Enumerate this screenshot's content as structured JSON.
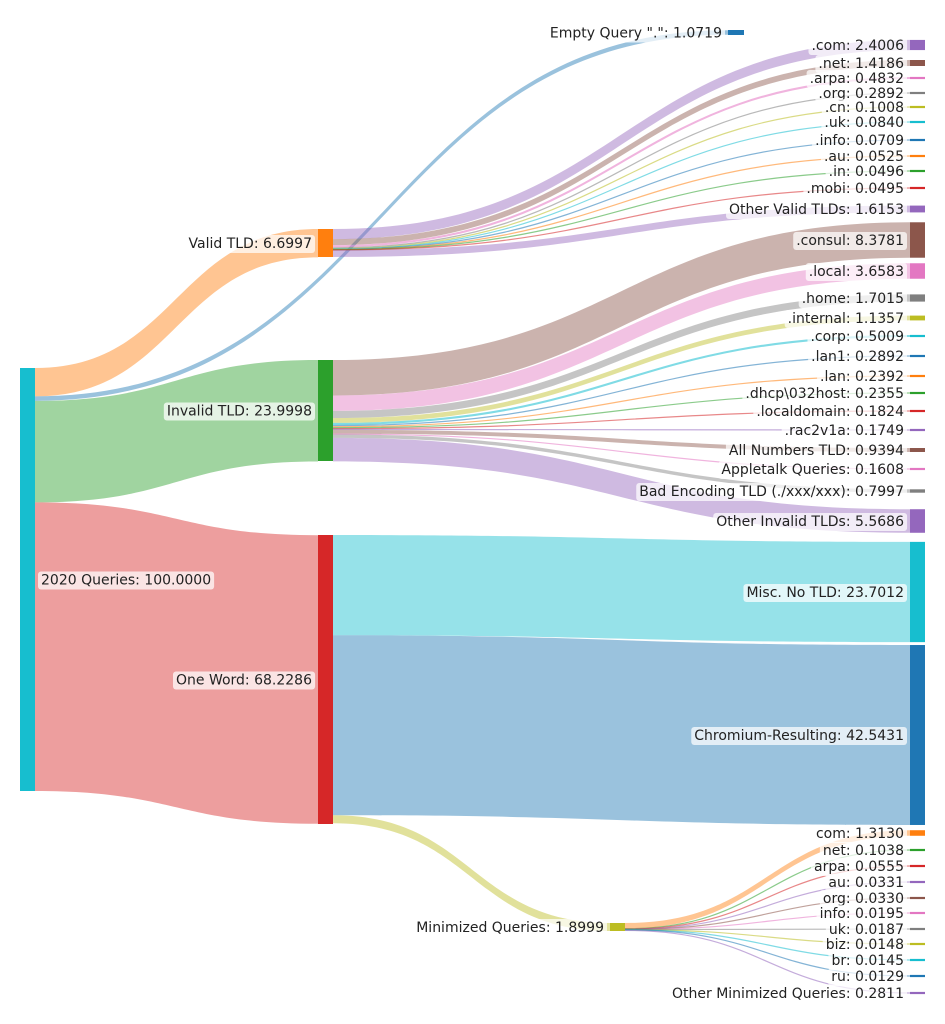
{
  "chart_data": {
    "type": "sankey",
    "title": "",
    "nodes": [
      {
        "id": "root",
        "label": "2020 Queries: 100.0000",
        "value": 100.0,
        "color": "#17becf"
      },
      {
        "id": "valid",
        "label": "Valid TLD: 6.6997",
        "value": 6.6997,
        "color": "#ff7f0e"
      },
      {
        "id": "invalid",
        "label": "Invalid TLD: 23.9998",
        "value": 23.9998,
        "color": "#2ca02c"
      },
      {
        "id": "oneword",
        "label": "One Word: 68.2286",
        "value": 68.2286,
        "color": "#d62728"
      },
      {
        "id": "empty",
        "label": "Empty Query \".\": 1.0719",
        "value": 1.0719,
        "color": "#1f77b4"
      },
      {
        "id": "v_com",
        "label": ".com: 2.4006",
        "value": 2.4006,
        "color": "#9467bd"
      },
      {
        "id": "v_net",
        "label": ".net: 1.4186",
        "value": 1.4186,
        "color": "#8c564b"
      },
      {
        "id": "v_arpa",
        "label": ".arpa: 0.4832",
        "value": 0.4832,
        "color": "#e377c2"
      },
      {
        "id": "v_org",
        "label": ".org: 0.2892",
        "value": 0.2892,
        "color": "#7f7f7f"
      },
      {
        "id": "v_cn",
        "label": ".cn: 0.1008",
        "value": 0.1008,
        "color": "#bcbd22"
      },
      {
        "id": "v_uk",
        "label": ".uk: 0.0840",
        "value": 0.084,
        "color": "#17becf"
      },
      {
        "id": "v_info",
        "label": ".info: 0.0709",
        "value": 0.0709,
        "color": "#1f77b4"
      },
      {
        "id": "v_au",
        "label": ".au: 0.0525",
        "value": 0.0525,
        "color": "#ff7f0e"
      },
      {
        "id": "v_in",
        "label": ".in: 0.0496",
        "value": 0.0496,
        "color": "#2ca02c"
      },
      {
        "id": "v_mobi",
        "label": ".mobi: 0.0495",
        "value": 0.0495,
        "color": "#d62728"
      },
      {
        "id": "v_other",
        "label": "Other Valid TLDs: 1.6153",
        "value": 1.6153,
        "color": "#9467bd"
      },
      {
        "id": "i_consul",
        "label": ".consul: 8.3781",
        "value": 8.3781,
        "color": "#8c564b"
      },
      {
        "id": "i_local",
        "label": ".local: 3.6583",
        "value": 3.6583,
        "color": "#e377c2"
      },
      {
        "id": "i_home",
        "label": ".home: 1.7015",
        "value": 1.7015,
        "color": "#7f7f7f"
      },
      {
        "id": "i_internal",
        "label": ".internal: 1.1357",
        "value": 1.1357,
        "color": "#bcbd22"
      },
      {
        "id": "i_corp",
        "label": ".corp: 0.5009",
        "value": 0.5009,
        "color": "#17becf"
      },
      {
        "id": "i_lan1",
        "label": ".lan1: 0.2892",
        "value": 0.2892,
        "color": "#1f77b4"
      },
      {
        "id": "i_lan",
        "label": ".lan: 0.2392",
        "value": 0.2392,
        "color": "#ff7f0e"
      },
      {
        "id": "i_dhcp",
        "label": ".dhcp\\032host: 0.2355",
        "value": 0.2355,
        "color": "#2ca02c"
      },
      {
        "id": "i_localdomain",
        "label": ".localdomain: 0.1824",
        "value": 0.1824,
        "color": "#d62728"
      },
      {
        "id": "i_rac",
        "label": ".rac2v1a: 0.1749",
        "value": 0.1749,
        "color": "#9467bd"
      },
      {
        "id": "i_numbers",
        "label": "All Numbers TLD: 0.9394",
        "value": 0.9394,
        "color": "#8c564b"
      },
      {
        "id": "i_appletalk",
        "label": "Appletalk Queries: 0.1608",
        "value": 0.1608,
        "color": "#e377c2"
      },
      {
        "id": "i_badenc",
        "label": "Bad Encoding TLD (./xxx/xxx): 0.7997",
        "value": 0.7997,
        "color": "#7f7f7f"
      },
      {
        "id": "i_other",
        "label": "Other Invalid TLDs: 5.5686",
        "value": 5.5686,
        "color": "#9467bd"
      },
      {
        "id": "o_misc",
        "label": "Misc. No TLD: 23.7012",
        "value": 23.7012,
        "color": "#17becf"
      },
      {
        "id": "o_chromium",
        "label": "Chromium-Resulting: 42.5431",
        "value": 42.5431,
        "color": "#1f77b4"
      },
      {
        "id": "o_min",
        "label": "Minimized Queries: 1.8999",
        "value": 1.8999,
        "color": "#bcbd22"
      },
      {
        "id": "m_com",
        "label": "com: 1.3130",
        "value": 1.313,
        "color": "#ff7f0e"
      },
      {
        "id": "m_net",
        "label": "net: 0.1038",
        "value": 0.1038,
        "color": "#2ca02c"
      },
      {
        "id": "m_arpa",
        "label": "arpa: 0.0555",
        "value": 0.0555,
        "color": "#d62728"
      },
      {
        "id": "m_au",
        "label": "au: 0.0331",
        "value": 0.0331,
        "color": "#9467bd"
      },
      {
        "id": "m_org",
        "label": "org: 0.0330",
        "value": 0.033,
        "color": "#8c564b"
      },
      {
        "id": "m_info",
        "label": "info: 0.0195",
        "value": 0.0195,
        "color": "#e377c2"
      },
      {
        "id": "m_uk",
        "label": "uk: 0.0187",
        "value": 0.0187,
        "color": "#7f7f7f"
      },
      {
        "id": "m_biz",
        "label": "biz: 0.0148",
        "value": 0.0148,
        "color": "#bcbd22"
      },
      {
        "id": "m_br",
        "label": "br: 0.0145",
        "value": 0.0145,
        "color": "#17becf"
      },
      {
        "id": "m_ru",
        "label": "ru: 0.0129",
        "value": 0.0129,
        "color": "#1f77b4"
      },
      {
        "id": "m_other",
        "label": "Other Minimized Queries: 0.2811",
        "value": 0.2811,
        "color": "#9467bd"
      }
    ],
    "links": [
      {
        "source": "root",
        "target": "valid",
        "value": 6.6997
      },
      {
        "source": "root",
        "target": "empty",
        "value": 1.0719
      },
      {
        "source": "root",
        "target": "invalid",
        "value": 23.9998
      },
      {
        "source": "root",
        "target": "oneword",
        "value": 68.2286
      },
      {
        "source": "valid",
        "target": "v_com",
        "value": 2.4006
      },
      {
        "source": "valid",
        "target": "v_net",
        "value": 1.4186
      },
      {
        "source": "valid",
        "target": "v_arpa",
        "value": 0.4832
      },
      {
        "source": "valid",
        "target": "v_org",
        "value": 0.2892
      },
      {
        "source": "valid",
        "target": "v_cn",
        "value": 0.1008
      },
      {
        "source": "valid",
        "target": "v_uk",
        "value": 0.084
      },
      {
        "source": "valid",
        "target": "v_info",
        "value": 0.0709
      },
      {
        "source": "valid",
        "target": "v_au",
        "value": 0.0525
      },
      {
        "source": "valid",
        "target": "v_in",
        "value": 0.0496
      },
      {
        "source": "valid",
        "target": "v_mobi",
        "value": 0.0495
      },
      {
        "source": "valid",
        "target": "v_other",
        "value": 1.6153
      },
      {
        "source": "invalid",
        "target": "i_consul",
        "value": 8.3781
      },
      {
        "source": "invalid",
        "target": "i_local",
        "value": 3.6583
      },
      {
        "source": "invalid",
        "target": "i_home",
        "value": 1.7015
      },
      {
        "source": "invalid",
        "target": "i_internal",
        "value": 1.1357
      },
      {
        "source": "invalid",
        "target": "i_corp",
        "value": 0.5009
      },
      {
        "source": "invalid",
        "target": "i_lan1",
        "value": 0.2892
      },
      {
        "source": "invalid",
        "target": "i_lan",
        "value": 0.2392
      },
      {
        "source": "invalid",
        "target": "i_dhcp",
        "value": 0.2355
      },
      {
        "source": "invalid",
        "target": "i_localdomain",
        "value": 0.1824
      },
      {
        "source": "invalid",
        "target": "i_rac",
        "value": 0.1749
      },
      {
        "source": "invalid",
        "target": "i_numbers",
        "value": 0.9394
      },
      {
        "source": "invalid",
        "target": "i_appletalk",
        "value": 0.1608
      },
      {
        "source": "invalid",
        "target": "i_badenc",
        "value": 0.7997
      },
      {
        "source": "invalid",
        "target": "i_other",
        "value": 5.5686
      },
      {
        "source": "oneword",
        "target": "o_misc",
        "value": 23.7012
      },
      {
        "source": "oneword",
        "target": "o_chromium",
        "value": 42.5431
      },
      {
        "source": "oneword",
        "target": "o_min",
        "value": 1.8999
      },
      {
        "source": "o_min",
        "target": "m_com",
        "value": 1.313
      },
      {
        "source": "o_min",
        "target": "m_net",
        "value": 0.1038
      },
      {
        "source": "o_min",
        "target": "m_arpa",
        "value": 0.0555
      },
      {
        "source": "o_min",
        "target": "m_au",
        "value": 0.0331
      },
      {
        "source": "o_min",
        "target": "m_org",
        "value": 0.033
      },
      {
        "source": "o_min",
        "target": "m_info",
        "value": 0.0195
      },
      {
        "source": "o_min",
        "target": "m_uk",
        "value": 0.0187
      },
      {
        "source": "o_min",
        "target": "m_biz",
        "value": 0.0148
      },
      {
        "source": "o_min",
        "target": "m_br",
        "value": 0.0145
      },
      {
        "source": "o_min",
        "target": "m_ru",
        "value": 0.0129
      },
      {
        "source": "o_min",
        "target": "m_other",
        "value": 0.2811
      }
    ]
  }
}
